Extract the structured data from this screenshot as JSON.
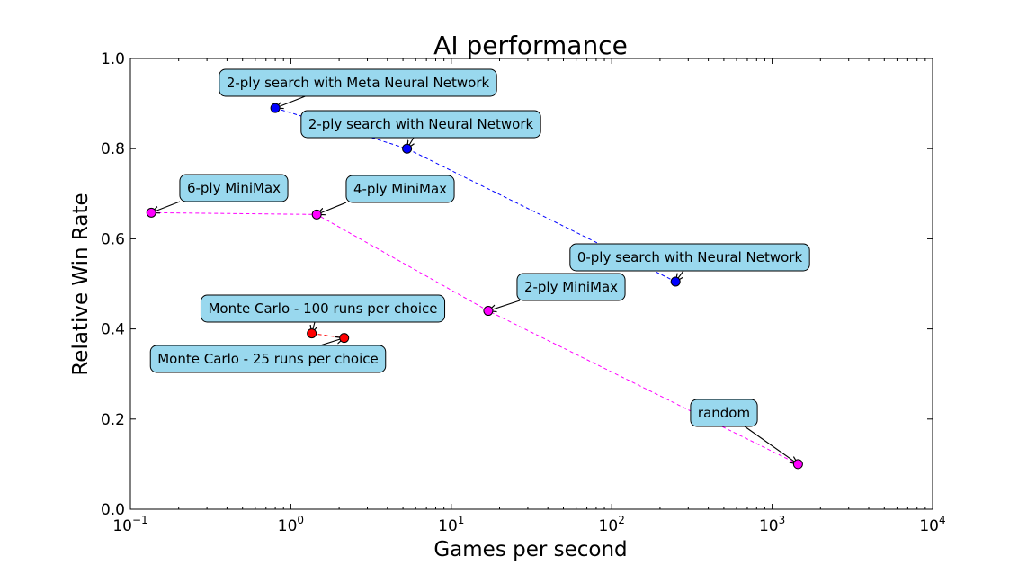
{
  "chart_data": {
    "type": "scatter",
    "title": "AI performance",
    "xlabel": "Games per second",
    "ylabel": "Relative Win Rate",
    "xscale": "log",
    "xlim": [
      0.1,
      10000
    ],
    "ylim": [
      0.0,
      1.0
    ],
    "grid": false,
    "x_ticks": [
      {
        "value": 0.1,
        "base": "10",
        "exp": "−1"
      },
      {
        "value": 1,
        "base": "10",
        "exp": "0"
      },
      {
        "value": 10,
        "base": "10",
        "exp": "1"
      },
      {
        "value": 100,
        "base": "10",
        "exp": "2"
      },
      {
        "value": 1000,
        "base": "10",
        "exp": "3"
      },
      {
        "value": 10000,
        "base": "10",
        "exp": "4"
      }
    ],
    "y_ticks": [
      {
        "value": 0.0,
        "label": "0.0"
      },
      {
        "value": 0.2,
        "label": "0.2"
      },
      {
        "value": 0.4,
        "label": "0.4"
      },
      {
        "value": 0.6,
        "label": "0.6"
      },
      {
        "value": 0.8,
        "label": "0.8"
      },
      {
        "value": 1.0,
        "label": "1.0"
      }
    ],
    "series": [
      {
        "color": "#0000ff",
        "line_color": "#0000ff",
        "points": [
          {
            "x": 0.8,
            "y": 0.89,
            "label": "2-ply search with Meta Neural Network"
          },
          {
            "x": 5.3,
            "y": 0.8,
            "label": "2-ply search with Neural Network"
          },
          {
            "x": 250,
            "y": 0.505,
            "label": "0-ply search with Neural Network"
          }
        ]
      },
      {
        "color": "#ff00ff",
        "line_color": "#ff00ff",
        "points": [
          {
            "x": 0.135,
            "y": 0.658,
            "label": "6-ply MiniMax"
          },
          {
            "x": 1.45,
            "y": 0.654,
            "label": "4-ply MiniMax"
          },
          {
            "x": 17,
            "y": 0.44,
            "label": "2-ply MiniMax"
          },
          {
            "x": 1450,
            "y": 0.1,
            "label": "random"
          }
        ]
      },
      {
        "color": "#ff0000",
        "line_color": "#ff0000",
        "points": [
          {
            "x": 1.35,
            "y": 0.39,
            "label": "Monte Carlo - 100 runs per choice"
          },
          {
            "x": 2.15,
            "y": 0.38,
            "label": "Monte Carlo -  25 runs per choice"
          }
        ]
      }
    ],
    "annotation_style": {
      "box_fill": "#99d8ee",
      "box_stroke": "#000000",
      "arrow": "#000000"
    }
  }
}
